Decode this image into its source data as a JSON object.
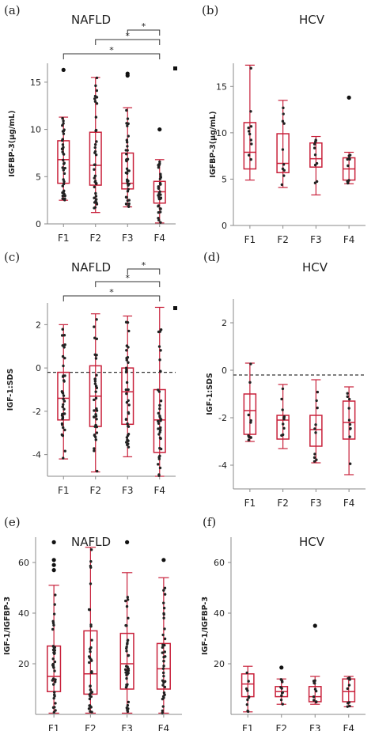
{
  "colors": {
    "box": "#c8203a",
    "point": "#222222",
    "axis": "#8a8a8a",
    "outlier": "#111111",
    "bracket": "#333333"
  },
  "chart_data": [
    {
      "type": "box",
      "panel_label": "(a)",
      "title": "NAFLD",
      "ylabel": "IGFBP-3(µg/mL)",
      "categories": [
        "F1",
        "F2",
        "F3",
        "F4"
      ],
      "ylim": [
        0,
        17
      ],
      "yticks": [
        0,
        5,
        10,
        15
      ],
      "ytick_labels": [
        "0",
        "5",
        "10",
        "15"
      ],
      "boxes": [
        {
          "min": 2.5,
          "q1": 4.3,
          "median": 6.8,
          "q3": 8.8,
          "max": 11.3,
          "outliers": [
            16.3
          ]
        },
        {
          "min": 1.2,
          "q1": 4.1,
          "median": 6.2,
          "q3": 9.7,
          "max": 15.5,
          "outliers": []
        },
        {
          "min": 1.8,
          "q1": 3.7,
          "median": 4.3,
          "q3": 7.5,
          "max": 12.3,
          "outliers": [
            15.9,
            15.7
          ]
        },
        {
          "min": 0.1,
          "q1": 2.2,
          "median": 3.4,
          "q3": 4.5,
          "max": 6.8,
          "outliers": [
            10.0
          ]
        }
      ],
      "significance": [
        {
          "from": "F3",
          "to": "F4",
          "label": "*"
        },
        {
          "from": "F2",
          "to": "F4",
          "label": "*"
        },
        {
          "from": "F1",
          "to": "F4",
          "label": "*"
        }
      ],
      "corner_marker": true
    },
    {
      "type": "box",
      "panel_label": "(b)",
      "title": "HCV",
      "ylabel": "IGFBP-3(µg/mL)",
      "categories": [
        "F1",
        "F2",
        "F3",
        "F4"
      ],
      "ylim": [
        0,
        17.5
      ],
      "yticks": [
        0,
        5,
        10,
        15
      ],
      "ytick_labels": [
        "0",
        "5",
        "10",
        "15"
      ],
      "boxes": [
        {
          "min": 4.9,
          "q1": 6.1,
          "median": 7.9,
          "q3": 11.1,
          "max": 17.3,
          "outliers": []
        },
        {
          "min": 4.1,
          "q1": 5.7,
          "median": 6.7,
          "q3": 9.9,
          "max": 13.5,
          "outliers": []
        },
        {
          "min": 3.3,
          "q1": 6.3,
          "median": 7.2,
          "q3": 8.9,
          "max": 9.6,
          "outliers": []
        },
        {
          "min": 4.5,
          "q1": 4.9,
          "median": 6.1,
          "q3": 7.3,
          "max": 7.9,
          "outliers": [
            13.8
          ]
        }
      ]
    },
    {
      "type": "box",
      "panel_label": "(c)",
      "title": "NAFLD",
      "ylabel": "IGF-1:SDS",
      "categories": [
        "F1",
        "F2",
        "F3",
        "F4"
      ],
      "ylim": [
        -5,
        3
      ],
      "yticks": [
        -4,
        -2,
        0,
        2
      ],
      "ytick_labels": [
        "-4",
        "-2",
        "0",
        "2"
      ],
      "reference_line": -0.2,
      "boxes": [
        {
          "min": -4.2,
          "q1": -2.4,
          "median": -1.4,
          "q3": -0.2,
          "max": 2.0,
          "outliers": []
        },
        {
          "min": -4.8,
          "q1": -2.7,
          "median": -1.3,
          "q3": 0.1,
          "max": 2.5,
          "outliers": []
        },
        {
          "min": -4.1,
          "q1": -2.6,
          "median": -1.1,
          "q3": 0.0,
          "max": 2.4,
          "outliers": []
        },
        {
          "min": -5.0,
          "q1": -3.9,
          "median": -2.4,
          "q3": -1.0,
          "max": 2.8,
          "outliers": []
        }
      ],
      "significance": [
        {
          "from": "F3",
          "to": "F4",
          "label": "*"
        },
        {
          "from": "F2",
          "to": "F4",
          "label": "*"
        },
        {
          "from": "F1",
          "to": "F4",
          "label": "*"
        }
      ],
      "corner_marker": true
    },
    {
      "type": "box",
      "panel_label": "(d)",
      "title": "HCV",
      "ylabel": "IGF-1:SDS",
      "categories": [
        "F1",
        "F2",
        "F3",
        "F4"
      ],
      "ylim": [
        -5,
        3
      ],
      "yticks": [
        -4,
        -2,
        0,
        2
      ],
      "ytick_labels": [
        "-4",
        "-2",
        "0",
        "2"
      ],
      "reference_line": -0.2,
      "boxes": [
        {
          "min": -3.0,
          "q1": -2.7,
          "median": -1.7,
          "q3": -1.0,
          "max": 0.3,
          "outliers": []
        },
        {
          "min": -3.3,
          "q1": -2.9,
          "median": -2.1,
          "q3": -1.9,
          "max": -0.6,
          "outliers": []
        },
        {
          "min": -3.9,
          "q1": -3.2,
          "median": -2.5,
          "q3": -1.9,
          "max": -0.4,
          "outliers": []
        },
        {
          "min": -4.4,
          "q1": -2.9,
          "median": -2.2,
          "q3": -1.3,
          "max": -0.7,
          "outliers": []
        }
      ]
    },
    {
      "type": "box",
      "panel_label": "(e)",
      "title": "NAFLD",
      "ylabel": "IGF-1/IGFBP-3",
      "categories": [
        "F1",
        "F2",
        "F3",
        "F4"
      ],
      "ylim": [
        0,
        70
      ],
      "yticks": [
        20,
        40,
        60
      ],
      "ytick_labels": [
        "20",
        "40",
        "60"
      ],
      "boxes": [
        {
          "min": 0.5,
          "q1": 9,
          "median": 15,
          "q3": 27,
          "max": 51,
          "outliers": [
            57,
            59,
            61,
            68
          ]
        },
        {
          "min": 0.5,
          "q1": 8,
          "median": 16,
          "q3": 33,
          "max": 66,
          "outliers": []
        },
        {
          "min": 0.5,
          "q1": 10,
          "median": 20,
          "q3": 32,
          "max": 56,
          "outliers": [
            68
          ]
        },
        {
          "min": 0.5,
          "q1": 10,
          "median": 18,
          "q3": 28,
          "max": 54,
          "outliers": [
            61
          ]
        }
      ]
    },
    {
      "type": "box",
      "panel_label": "(f)",
      "title": "HCV",
      "ylabel": "IGF-1/IGFBP-3",
      "categories": [
        "F1",
        "F2",
        "F3",
        "F4"
      ],
      "ylim": [
        0,
        70
      ],
      "yticks": [
        20,
        40,
        60
      ],
      "ytick_labels": [
        "20",
        "40",
        "60"
      ],
      "boxes": [
        {
          "min": 1,
          "q1": 7,
          "median": 12,
          "q3": 16,
          "max": 19,
          "outliers": []
        },
        {
          "min": 4,
          "q1": 7,
          "median": 9,
          "q3": 11,
          "max": 14,
          "outliers": [
            18.5
          ]
        },
        {
          "min": 4,
          "q1": 5,
          "median": 7,
          "q3": 11,
          "max": 15,
          "outliers": [
            35
          ]
        },
        {
          "min": 3,
          "q1": 5,
          "median": 9,
          "q3": 14,
          "max": 15,
          "outliers": []
        }
      ]
    }
  ]
}
